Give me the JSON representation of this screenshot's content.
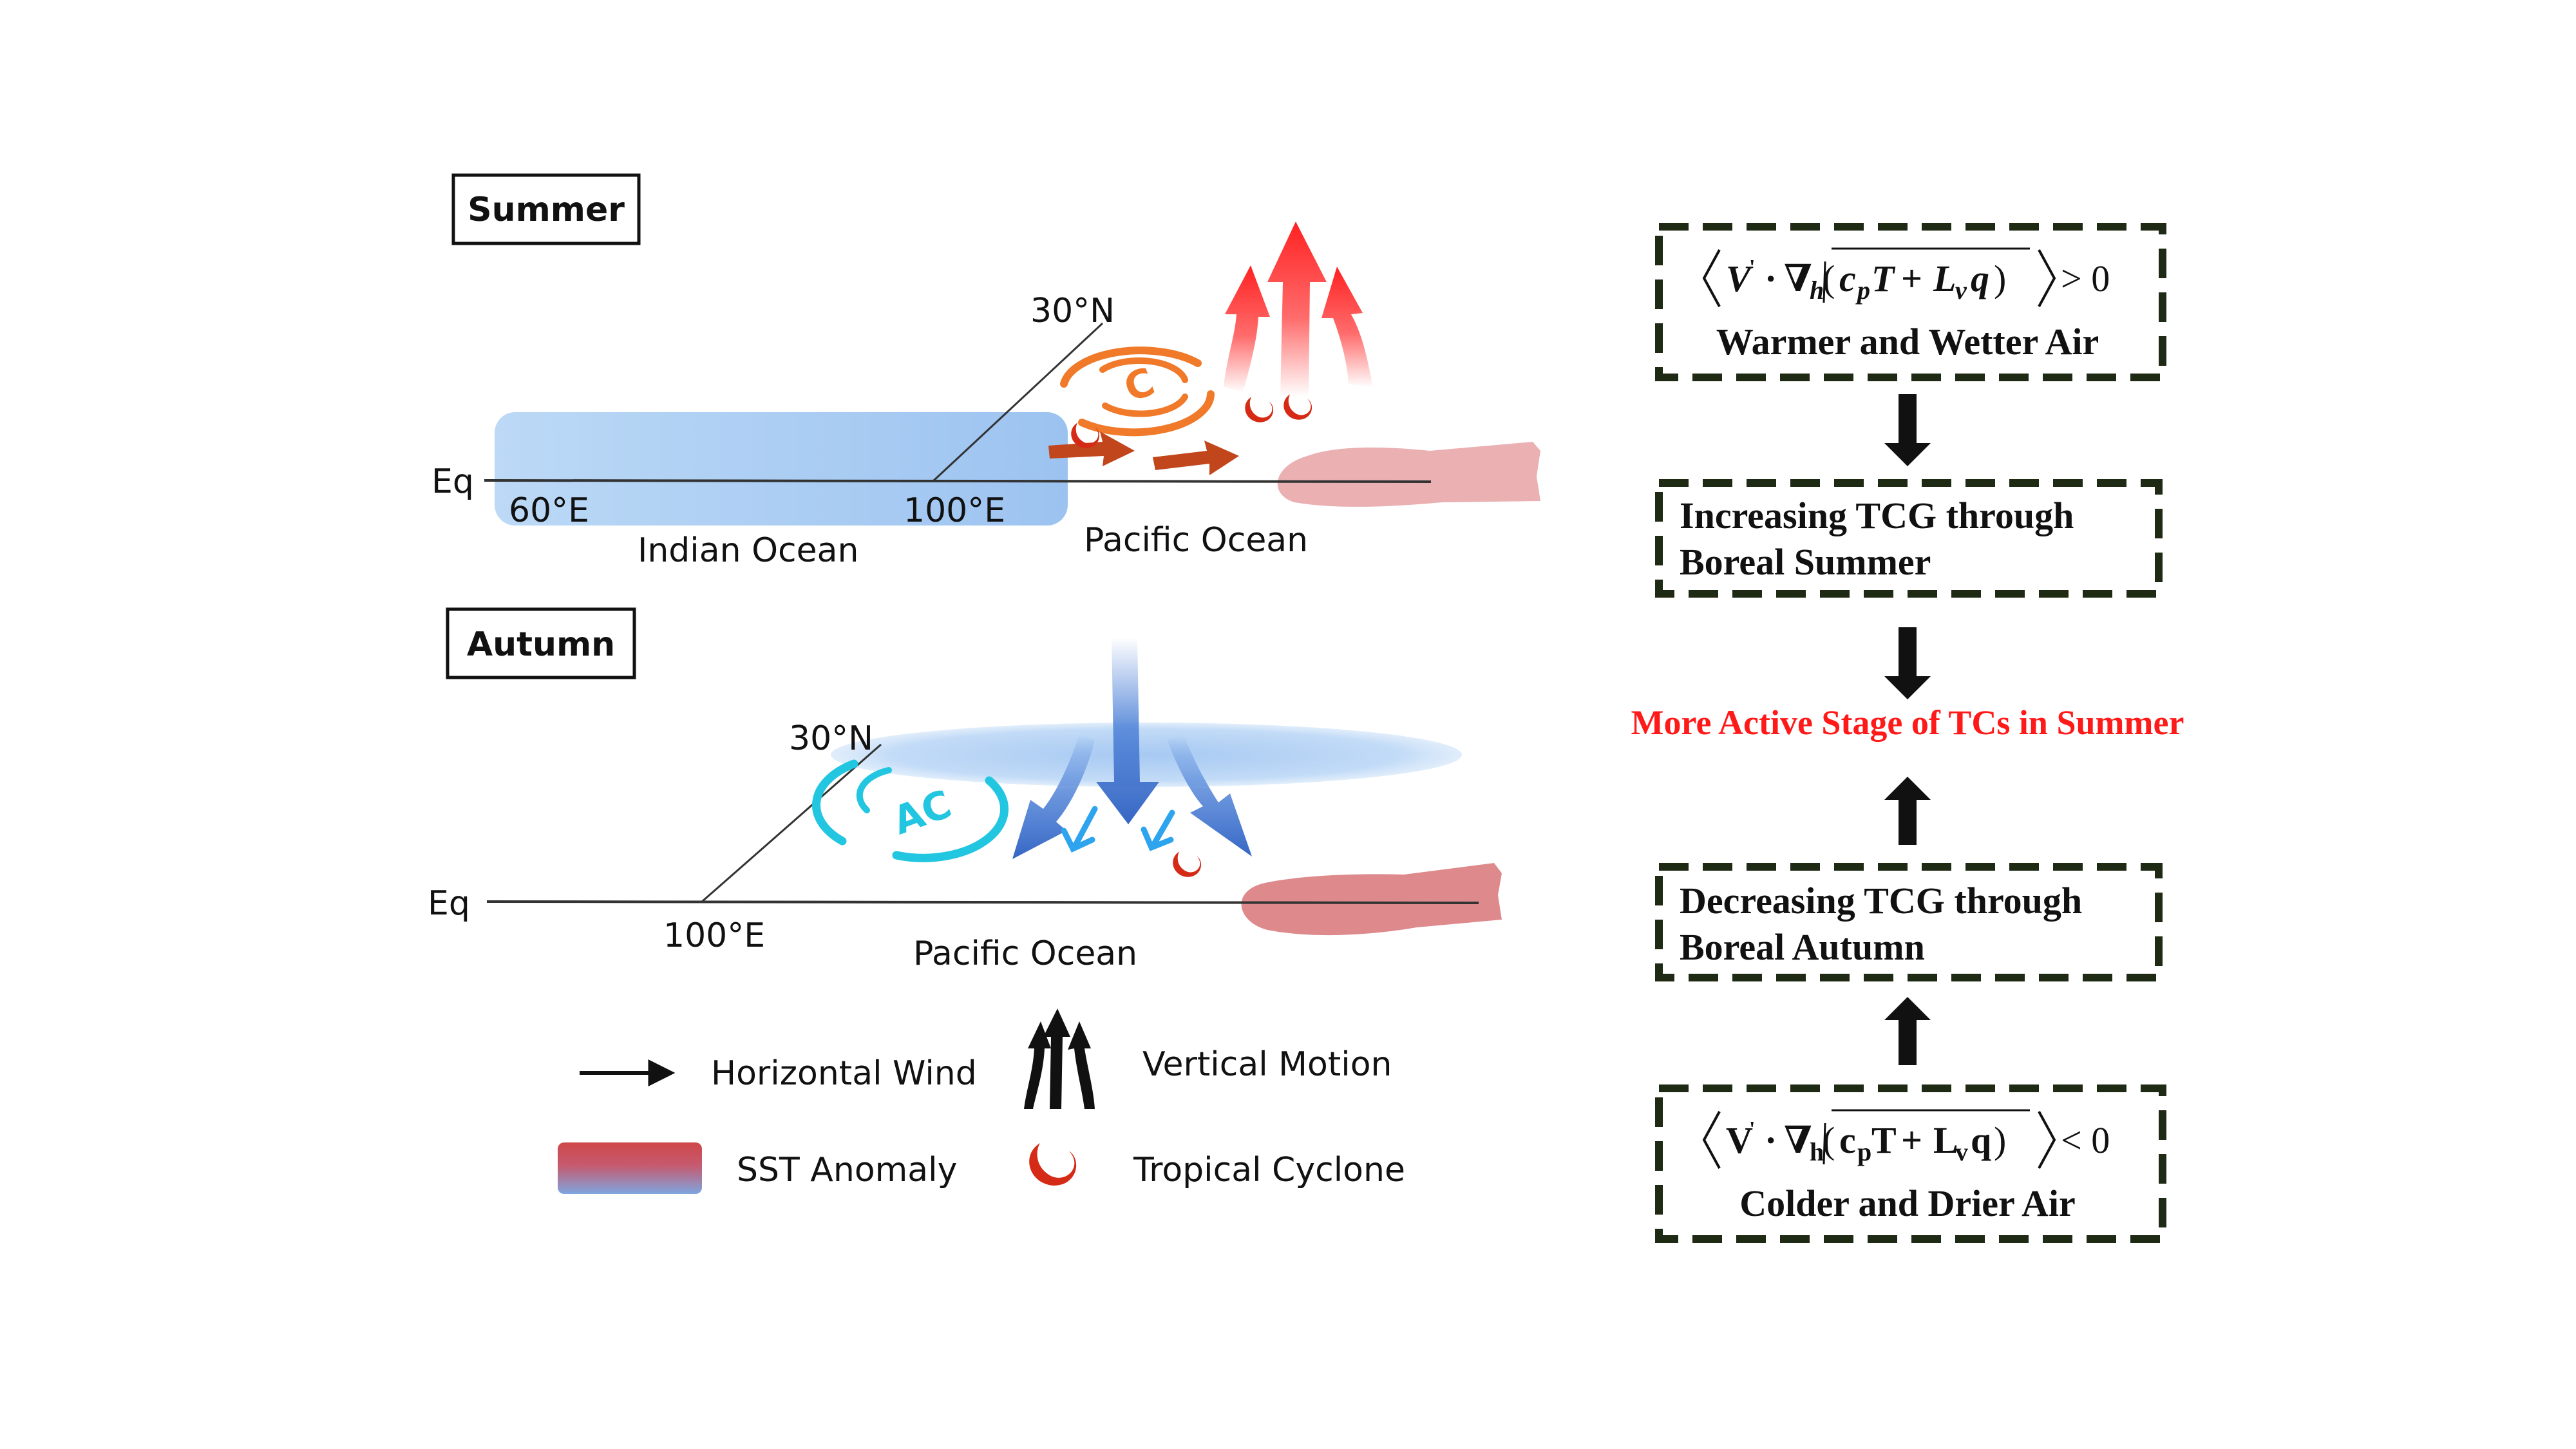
{
  "summer": {
    "title": "Summer",
    "lat_label": "30°N",
    "eq_label": "Eq",
    "lon_60": "60°E",
    "lon_100": "100°E",
    "indian_ocean": "Indian Ocean",
    "pacific_ocean": "Pacific Ocean",
    "cyclone_letter": "C"
  },
  "autumn": {
    "title": "Autumn",
    "lat_label": "30°N",
    "eq_label": "Eq",
    "lon_100": "100°E",
    "pacific_ocean": "Pacific Ocean",
    "anticyclone_letters": "AC"
  },
  "legend": {
    "horizontal_wind": "Horizontal Wind",
    "vertical_motion": "Vertical Motion",
    "sst_anomaly": "SST Anomaly",
    "tropical_cyclone": "Tropical Cyclone"
  },
  "flowchart": {
    "box_top": {
      "relation": "> 0",
      "caption": "Warmer and Wetter Air"
    },
    "box_increase": {
      "line1": "Increasing TCG through",
      "line2": "Boreal Summer"
    },
    "conclusion": "More Active Stage of TCs in Summer",
    "box_decrease": {
      "line1": "Decreasing TCG through",
      "line2": "Boreal Autumn"
    },
    "box_bottom": {
      "relation": "< 0",
      "caption": "Colder and Drier Air"
    }
  },
  "colors": {
    "warm_anomaly": "#e8a0a4",
    "cool_anomaly": "#a9cdf3",
    "warm_wind": "#e03020",
    "cool_wind": "#3f78cc",
    "cyclone": "#e05520",
    "anticyclone": "#22c6e0",
    "box_border": "#1f2a14",
    "conclusion": "#ff1a1a"
  }
}
